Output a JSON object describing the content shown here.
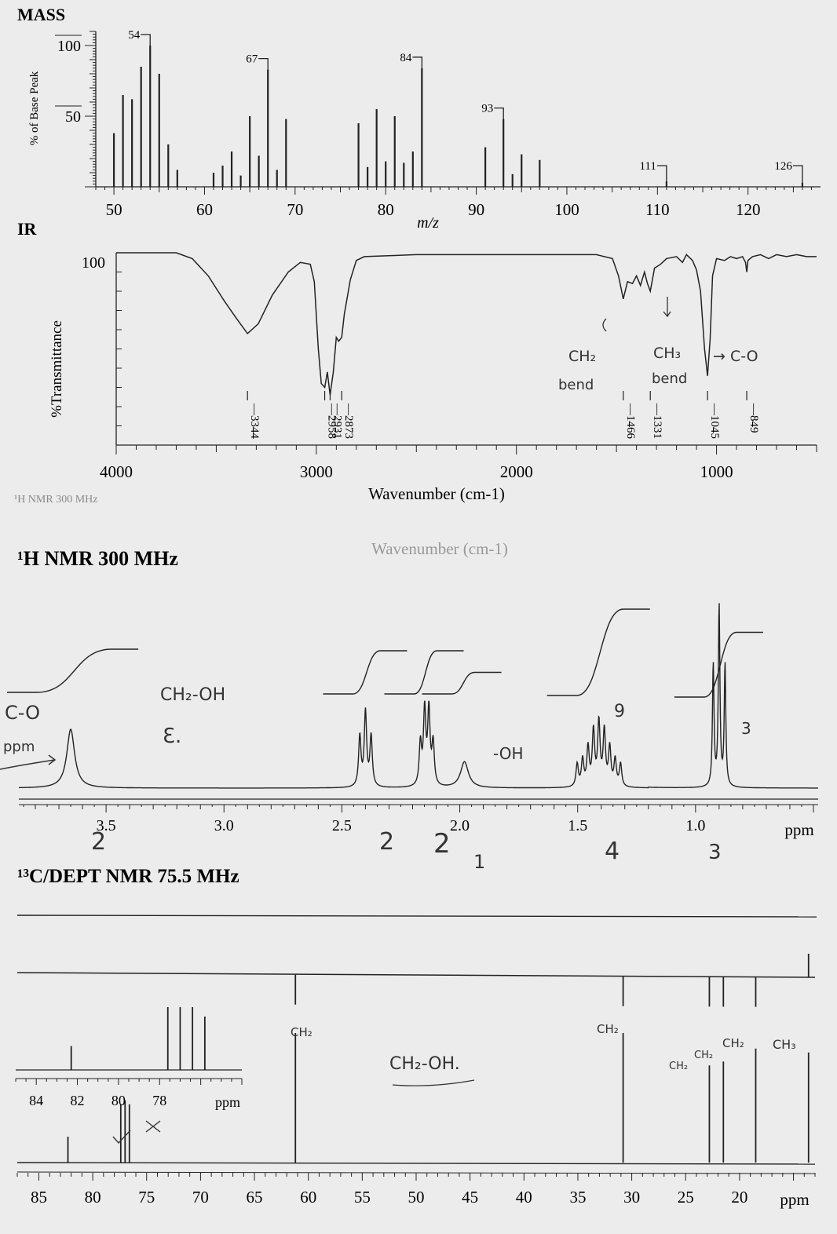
{
  "sections": {
    "mass": "MASS",
    "ir": "IR",
    "h_nmr": "¹H NMR 300 MHz",
    "c_nmr": "¹³C/DEPT NMR 75.5 MHz"
  },
  "chart_data": [
    {
      "id": "mass",
      "type": "bar",
      "title": "MASS",
      "xlabel": "m/z",
      "ylabel": "% of Base Peak",
      "xlim": [
        48,
        128
      ],
      "ylim": [
        0,
        110
      ],
      "xticks": [
        50,
        60,
        70,
        80,
        90,
        100,
        110,
        120
      ],
      "yticks": [
        50,
        100
      ],
      "peaks": [
        {
          "x": 50,
          "y": 38
        },
        {
          "x": 51,
          "y": 65
        },
        {
          "x": 52,
          "y": 62
        },
        {
          "x": 53,
          "y": 85
        },
        {
          "x": 54,
          "y": 100
        },
        {
          "x": 55,
          "y": 80
        },
        {
          "x": 56,
          "y": 30
        },
        {
          "x": 57,
          "y": 12
        },
        {
          "x": 61,
          "y": 10
        },
        {
          "x": 62,
          "y": 15
        },
        {
          "x": 63,
          "y": 25
        },
        {
          "x": 64,
          "y": 8
        },
        {
          "x": 65,
          "y": 50
        },
        {
          "x": 66,
          "y": 22
        },
        {
          "x": 67,
          "y": 83
        },
        {
          "x": 68,
          "y": 12
        },
        {
          "x": 69,
          "y": 48
        },
        {
          "x": 77,
          "y": 45
        },
        {
          "x": 78,
          "y": 14
        },
        {
          "x": 79,
          "y": 55
        },
        {
          "x": 80,
          "y": 18
        },
        {
          "x": 81,
          "y": 50
        },
        {
          "x": 82,
          "y": 17
        },
        {
          "x": 83,
          "y": 25
        },
        {
          "x": 84,
          "y": 84
        },
        {
          "x": 91,
          "y": 28
        },
        {
          "x": 93,
          "y": 48
        },
        {
          "x": 94,
          "y": 9
        },
        {
          "x": 95,
          "y": 23
        },
        {
          "x": 97,
          "y": 19
        },
        {
          "x": 111,
          "y": 4
        },
        {
          "x": 126,
          "y": 3
        }
      ],
      "peak_labels": [
        {
          "x": 54,
          "y": 100,
          "text": "54"
        },
        {
          "x": 67,
          "y": 83,
          "text": "67"
        },
        {
          "x": 84,
          "y": 84,
          "text": "84"
        },
        {
          "x": 93,
          "y": 48,
          "text": "93"
        },
        {
          "x": 111,
          "y": 4,
          "text": "111"
        },
        {
          "x": 126,
          "y": 3,
          "text": "126"
        }
      ]
    },
    {
      "id": "ir",
      "type": "line",
      "title": "IR",
      "xlabel": "Wavenumber (cm-1)",
      "ylabel": "%Transmittance",
      "xlim": [
        4000,
        500
      ],
      "ylim": [
        0,
        100
      ],
      "xticks": [
        4000,
        3000,
        2000,
        1000
      ],
      "yticks": [
        100
      ],
      "points": [
        [
          4000,
          100
        ],
        [
          3700,
          100
        ],
        [
          3620,
          97
        ],
        [
          3540,
          88
        ],
        [
          3460,
          75
        ],
        [
          3400,
          66
        ],
        [
          3344,
          58
        ],
        [
          3290,
          63
        ],
        [
          3220,
          78
        ],
        [
          3140,
          90
        ],
        [
          3080,
          95
        ],
        [
          3030,
          94
        ],
        [
          3010,
          85
        ],
        [
          2990,
          50
        ],
        [
          2975,
          32
        ],
        [
          2958,
          30
        ],
        [
          2945,
          38
        ],
        [
          2931,
          26
        ],
        [
          2915,
          38
        ],
        [
          2900,
          56
        ],
        [
          2888,
          54
        ],
        [
          2873,
          56
        ],
        [
          2860,
          68
        ],
        [
          2830,
          86
        ],
        [
          2800,
          96
        ],
        [
          2760,
          98
        ],
        [
          2500,
          99
        ],
        [
          2000,
          99
        ],
        [
          1600,
          99
        ],
        [
          1520,
          97
        ],
        [
          1490,
          88
        ],
        [
          1466,
          76
        ],
        [
          1445,
          85
        ],
        [
          1420,
          84
        ],
        [
          1400,
          88
        ],
        [
          1380,
          83
        ],
        [
          1360,
          90
        ],
        [
          1345,
          84
        ],
        [
          1331,
          80
        ],
        [
          1310,
          92
        ],
        [
          1280,
          94
        ],
        [
          1250,
          97
        ],
        [
          1200,
          98
        ],
        [
          1170,
          95
        ],
        [
          1150,
          99
        ],
        [
          1120,
          96
        ],
        [
          1100,
          91
        ],
        [
          1080,
          80
        ],
        [
          1060,
          50
        ],
        [
          1045,
          36
        ],
        [
          1032,
          55
        ],
        [
          1020,
          88
        ],
        [
          1000,
          97
        ],
        [
          960,
          96
        ],
        [
          930,
          98
        ],
        [
          900,
          97
        ],
        [
          870,
          98
        ],
        [
          855,
          95
        ],
        [
          849,
          90
        ],
        [
          843,
          96
        ],
        [
          820,
          98
        ],
        [
          780,
          99
        ],
        [
          740,
          97
        ],
        [
          700,
          99
        ],
        [
          650,
          98
        ],
        [
          600,
          99
        ],
        [
          550,
          98
        ],
        [
          500,
          98
        ]
      ],
      "peak_labels": [
        {
          "x": 3344,
          "text": "3344"
        },
        {
          "x": 2958,
          "text": "2958"
        },
        {
          "x": 2931,
          "text": "2931"
        },
        {
          "x": 2873,
          "text": "2873"
        },
        {
          "x": 1466,
          "text": "1466"
        },
        {
          "x": 1331,
          "text": "1331"
        },
        {
          "x": 1045,
          "text": "1045"
        },
        {
          "x": 849,
          "text": "849"
        }
      ]
    },
    {
      "id": "h_nmr",
      "type": "line",
      "title": "¹H NMR 300 MHz",
      "xlabel": "ppm",
      "xlim": [
        3.87,
        0.48
      ],
      "xticks": [
        3.5,
        3.0,
        2.5,
        2.0,
        1.5,
        1.0
      ],
      "signals": [
        {
          "ppm": 3.65,
          "height": 1.0,
          "width": 0.02,
          "lines": 1,
          "spacing": 0
        },
        {
          "ppm": 2.4,
          "height": 1.0,
          "width": 0.006,
          "lines": 3,
          "spacing": 0.024
        },
        {
          "ppm": 2.14,
          "height": 1.0,
          "width": 0.006,
          "lines": 4,
          "spacing": 0.018
        },
        {
          "ppm": 1.98,
          "height": 0.35,
          "width": 0.02,
          "lines": 1,
          "spacing": 0
        },
        {
          "ppm": 1.41,
          "height": 0.85,
          "width": 0.006,
          "lines": 9,
          "spacing": 0.023
        },
        {
          "ppm": 0.9,
          "height": 1.0,
          "width": 0.004,
          "lines": 3,
          "spacing": 0.025
        }
      ],
      "integrals": [
        {
          "from": 3.82,
          "to": 3.45,
          "rise": 1
        },
        {
          "from": 2.48,
          "to": 2.31,
          "rise": 1
        },
        {
          "from": 2.22,
          "to": 2.07,
          "rise": 1
        },
        {
          "from": 2.06,
          "to": 1.91,
          "rise": 0.5
        },
        {
          "from": 1.53,
          "to": 1.28,
          "rise": 2
        },
        {
          "from": 0.99,
          "to": 0.8,
          "rise": 1.5
        }
      ]
    },
    {
      "id": "c_nmr",
      "type": "line",
      "title": "¹³C/DEPT NMR 75.5 MHz",
      "xlabel": "ppm",
      "xlim": [
        87,
        13
      ],
      "xticks": [
        85,
        80,
        75,
        70,
        65,
        60,
        55,
        50,
        45,
        40,
        35,
        30,
        25,
        20
      ],
      "peaks": [
        {
          "ppm": 82.3,
          "height": 0.2
        },
        {
          "ppm": 77.4,
          "height": 0.45
        },
        {
          "ppm": 77.0,
          "height": 0.48
        },
        {
          "ppm": 76.6,
          "height": 0.45
        },
        {
          "ppm": 61.2,
          "height": 1.0
        },
        {
          "ppm": 30.8,
          "height": 1.0
        },
        {
          "ppm": 22.8,
          "height": 0.75
        },
        {
          "ppm": 21.5,
          "height": 0.78
        },
        {
          "ppm": 18.5,
          "height": 0.88
        },
        {
          "ppm": 13.6,
          "height": 0.85
        }
      ],
      "dept_90": [],
      "dept_135": [
        {
          "ppm": 61.2,
          "sign": -1
        },
        {
          "ppm": 30.8,
          "sign": -1
        },
        {
          "ppm": 22.8,
          "sign": -1
        },
        {
          "ppm": 21.5,
          "sign": -1
        },
        {
          "ppm": 18.5,
          "sign": -1
        },
        {
          "ppm": 13.6,
          "sign": 1
        }
      ],
      "inset": {
        "xlim": [
          85,
          74
        ],
        "xticks": [
          84,
          82,
          80,
          78
        ],
        "xlabel": "ppm",
        "peaks": [
          {
            "ppm": 82.3,
            "height": 0.38
          },
          {
            "ppm": 77.6,
            "height": 1.0
          },
          {
            "ppm": 77.0,
            "height": 1.0
          },
          {
            "ppm": 76.4,
            "height": 1.0
          },
          {
            "ppm": 75.8,
            "height": 0.85
          }
        ]
      }
    }
  ],
  "annotations": {
    "ir_ch2": "CH₂",
    "ir_bend1": "bend",
    "ir_ch3": "CH₃",
    "ir_bend2": "bend",
    "ir_co": "→ C-O",
    "h_co": "C-O",
    "h_ppm": "ppm",
    "h_ch2oh": "CH₂-OH",
    "h_oh": "-OH",
    "h_9": "9",
    "h_3": "3",
    "h_int_2a": "2",
    "h_int_2b": "2",
    "h_int_2c": "2",
    "h_int_1": "1",
    "h_int_4": "4",
    "h_int_3": "3",
    "h_int_half": "2",
    "c_ch2_a": "CH₂",
    "c_ch2_b": "CH₂",
    "c_ch2_c": "CH₂",
    "c_ch2_d": "CH₂",
    "c_ch2_e": "CH₂",
    "c_ch3": "CH₃",
    "c_ch2oh": "CH₂-OH."
  }
}
